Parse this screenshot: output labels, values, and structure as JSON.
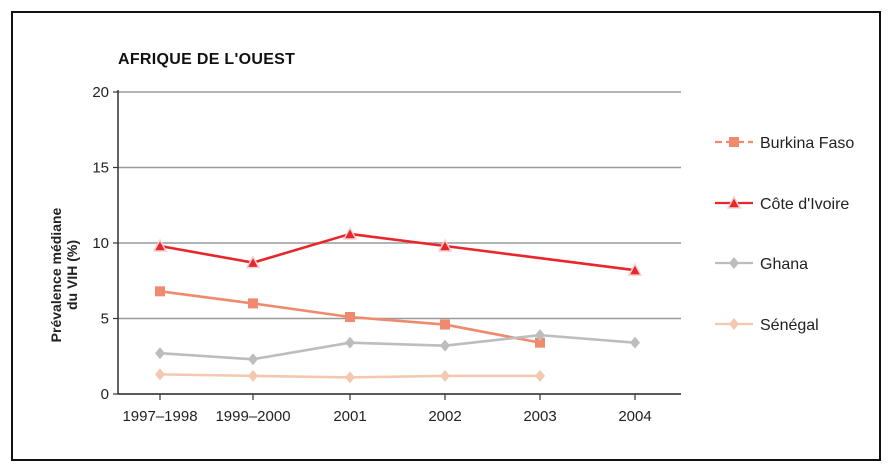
{
  "chart_data": {
    "type": "line",
    "title": "AFRIQUE DE L'OUEST",
    "ylabel_lines": [
      "Prévalence médiane",
      "du VIH (%)"
    ],
    "xlabel": "",
    "categories": [
      "1997–1998",
      "1999–2000",
      "2001",
      "2002",
      "2003",
      "2004"
    ],
    "ylim": [
      0,
      20
    ],
    "yticks": [
      "0",
      "5",
      "10",
      "15",
      "20"
    ],
    "grid": true,
    "legend_position": "right",
    "series": [
      {
        "name": "Burkina Faso",
        "values": [
          6.8,
          6.0,
          5.1,
          4.6,
          3.4,
          null
        ],
        "color": "#f08a6e",
        "marker": "square",
        "dash": true
      },
      {
        "name": "Côte d'Ivoire",
        "values": [
          9.8,
          8.7,
          10.6,
          9.8,
          null,
          8.2
        ],
        "color": "#e8262b",
        "marker": "triangle",
        "dash": false
      },
      {
        "name": "Ghana",
        "values": [
          2.7,
          2.3,
          3.4,
          3.2,
          3.9,
          3.4
        ],
        "color": "#bdbdbd",
        "marker": "diamond",
        "dash": false
      },
      {
        "name": "Sénégal",
        "values": [
          1.3,
          1.2,
          1.1,
          1.2,
          1.2,
          null
        ],
        "color": "#f4c8b0",
        "marker": "diamond",
        "dash": false
      }
    ]
  }
}
